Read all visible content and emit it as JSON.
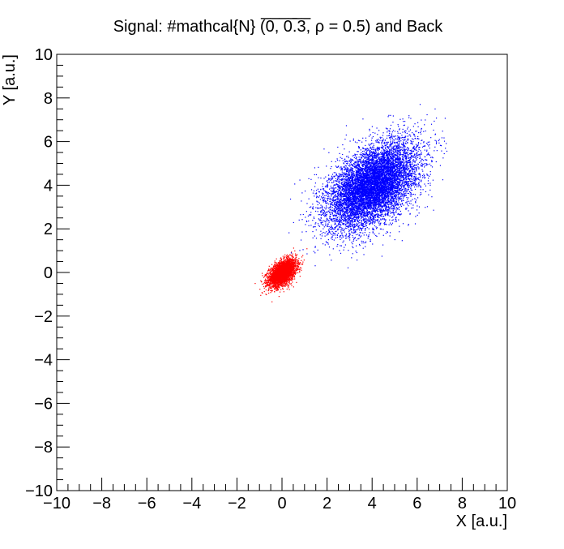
{
  "chart_data": {
    "type": "scatter",
    "title": "Signal: #mathcal{N} (̅0̅, ̅0̅.̅3̅, ρ = 0.5) and Back",
    "xlabel": "X [a.u.]",
    "ylabel": "Y [a.u.]",
    "xlim": [
      -10,
      10
    ],
    "ylim": [
      -10,
      10
    ],
    "x_ticks": [
      "−10",
      "−8",
      "−6",
      "−4",
      "−2",
      "0",
      "2",
      "4",
      "6",
      "8",
      "10"
    ],
    "y_ticks": [
      "10",
      "8",
      "6",
      "4",
      "2",
      "0",
      "−2",
      "−4",
      "−6",
      "−8",
      "−10"
    ],
    "grid": false,
    "legend": "none",
    "series": [
      {
        "color": "#ff0000",
        "distribution": {
          "mean": [
            0,
            0
          ],
          "sigma": [
            0.3,
            0.3
          ],
          "rho": 0.5,
          "count": 3500
        }
      },
      {
        "color": "#0000ff",
        "distribution": {
          "mean": [
            4,
            4
          ],
          "sigma": [
            1,
            1
          ],
          "rho": 0.5,
          "count": 9000
        }
      }
    ]
  }
}
